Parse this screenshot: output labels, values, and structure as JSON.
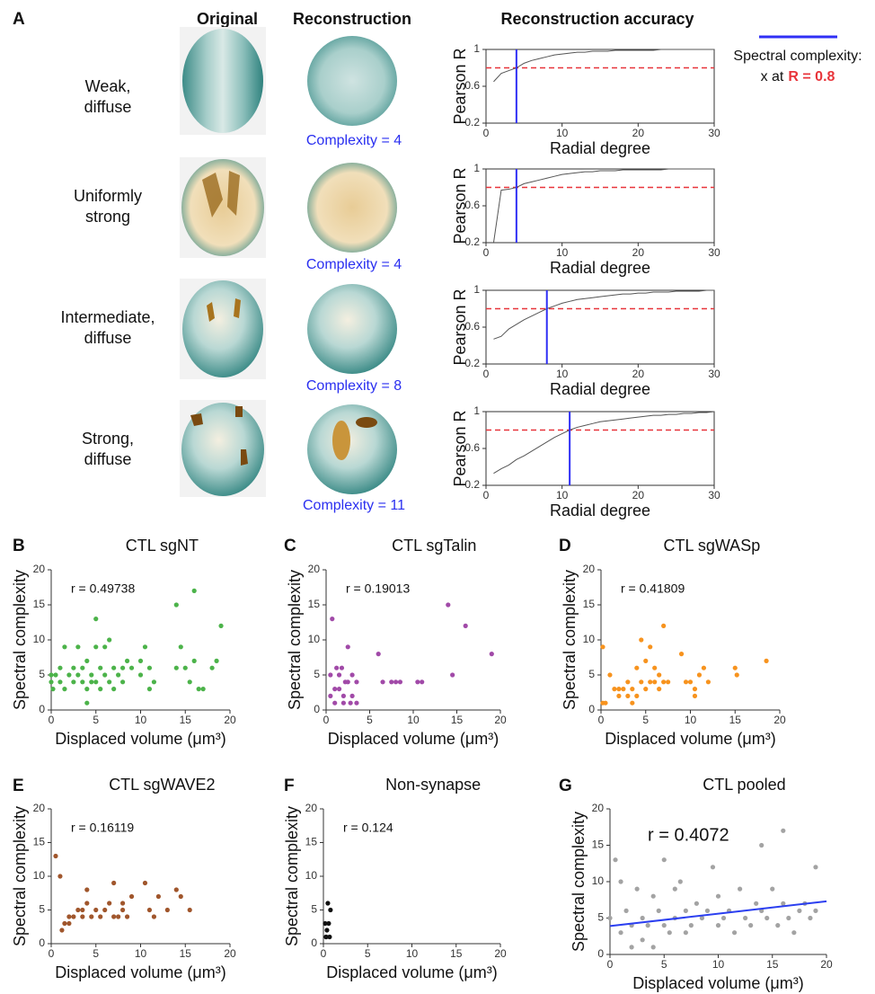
{
  "figure": {
    "panel_labels": [
      "A",
      "B",
      "C",
      "D",
      "E",
      "F",
      "G"
    ],
    "column_headers": [
      "Original",
      "Reconstruction",
      "Reconstruction accuracy"
    ],
    "legend": {
      "line1": "Spectral complexity:",
      "line2": "x at",
      "threshold": "R = 0.8",
      "color": "#2f2ff5",
      "threshold_color": "#e8343a"
    },
    "rows": [
      {
        "label": [
          "Weak,",
          "diffuse"
        ],
        "complexity_label": "Complexity = 4"
      },
      {
        "label": [
          "Uniformly",
          "strong"
        ],
        "complexity_label": "Complexity = 4"
      },
      {
        "label": [
          "Intermediate,",
          "diffuse"
        ],
        "complexity_label": "Complexity = 8"
      },
      {
        "label": [
          "Strong,",
          "diffuse"
        ],
        "complexity_label": "Complexity = 11"
      }
    ]
  },
  "chart_data": [
    {
      "type": "line",
      "xlabel": "Radial degree",
      "ylabel": "Pearson R",
      "xlim": [
        0,
        30
      ],
      "ylim": [
        0.2,
        1
      ],
      "xticks": [
        0,
        10,
        20,
        30
      ],
      "yticks": [
        0.2,
        0.6,
        1
      ],
      "x": [
        1,
        2,
        3,
        4,
        5,
        6,
        7,
        8,
        9,
        10,
        11,
        12,
        13,
        14,
        15,
        16,
        17,
        18,
        19,
        20,
        21,
        22,
        23,
        24,
        25,
        26,
        27,
        28,
        29,
        30
      ],
      "values": [
        0.65,
        0.74,
        0.77,
        0.8,
        0.85,
        0.88,
        0.9,
        0.92,
        0.94,
        0.95,
        0.96,
        0.97,
        0.97,
        0.98,
        0.98,
        0.98,
        0.99,
        0.99,
        0.99,
        0.99,
        0.99,
        0.99,
        1,
        1,
        1,
        1,
        1,
        1,
        1,
        1
      ],
      "color": "#555555",
      "hline": 0.8,
      "hline_color": "#e8343a",
      "vline": 4,
      "vline_color": "#2f2ff5"
    },
    {
      "type": "line",
      "xlabel": "Radial degree",
      "ylabel": "Pearson R",
      "xlim": [
        0,
        30
      ],
      "ylim": [
        0.2,
        1
      ],
      "xticks": [
        0,
        10,
        20,
        30
      ],
      "yticks": [
        0.2,
        0.6,
        1
      ],
      "x": [
        1,
        2,
        3,
        4,
        5,
        6,
        7,
        8,
        9,
        10,
        11,
        12,
        13,
        14,
        15,
        16,
        17,
        18,
        19,
        20,
        21,
        22,
        23,
        24,
        25,
        26,
        27,
        28,
        29,
        30
      ],
      "values": [
        0.2,
        0.77,
        0.78,
        0.8,
        0.84,
        0.86,
        0.88,
        0.9,
        0.92,
        0.94,
        0.95,
        0.96,
        0.97,
        0.97,
        0.98,
        0.98,
        0.98,
        0.99,
        0.99,
        0.99,
        0.99,
        0.99,
        0.99,
        1,
        1,
        1,
        1,
        1,
        1,
        1
      ],
      "color": "#555555",
      "hline": 0.8,
      "hline_color": "#e8343a",
      "vline": 4,
      "vline_color": "#2f2ff5"
    },
    {
      "type": "line",
      "xlabel": "Radial degree",
      "ylabel": "Pearson R",
      "xlim": [
        0,
        30
      ],
      "ylim": [
        0.2,
        1
      ],
      "xticks": [
        0,
        10,
        20,
        30
      ],
      "yticks": [
        0.2,
        0.6,
        1
      ],
      "x": [
        1,
        2,
        3,
        4,
        5,
        6,
        7,
        8,
        9,
        10,
        11,
        12,
        13,
        14,
        15,
        16,
        17,
        18,
        19,
        20,
        21,
        22,
        23,
        24,
        25,
        26,
        27,
        28,
        29,
        30
      ],
      "values": [
        0.47,
        0.5,
        0.58,
        0.63,
        0.68,
        0.72,
        0.76,
        0.8,
        0.83,
        0.86,
        0.88,
        0.9,
        0.91,
        0.92,
        0.93,
        0.94,
        0.95,
        0.96,
        0.96,
        0.97,
        0.97,
        0.98,
        0.98,
        0.98,
        0.99,
        0.99,
        0.99,
        0.99,
        1,
        1
      ],
      "color": "#555555",
      "hline": 0.8,
      "hline_color": "#e8343a",
      "vline": 8,
      "vline_color": "#2f2ff5"
    },
    {
      "type": "line",
      "xlabel": "Radial degree",
      "ylabel": "Pearson R",
      "xlim": [
        0,
        30
      ],
      "ylim": [
        0.2,
        1
      ],
      "xticks": [
        0,
        10,
        20,
        30
      ],
      "yticks": [
        0.2,
        0.6,
        1
      ],
      "x": [
        1,
        2,
        3,
        4,
        5,
        6,
        7,
        8,
        9,
        10,
        11,
        12,
        13,
        14,
        15,
        16,
        17,
        18,
        19,
        20,
        21,
        22,
        23,
        24,
        25,
        26,
        27,
        28,
        29,
        30
      ],
      "values": [
        0.33,
        0.38,
        0.42,
        0.48,
        0.52,
        0.57,
        0.62,
        0.67,
        0.72,
        0.76,
        0.8,
        0.83,
        0.85,
        0.87,
        0.89,
        0.9,
        0.91,
        0.92,
        0.93,
        0.94,
        0.95,
        0.96,
        0.96,
        0.97,
        0.97,
        0.98,
        0.98,
        0.99,
        0.99,
        1
      ],
      "color": "#555555",
      "hline": 0.8,
      "hline_color": "#e8343a",
      "vline": 11,
      "vline_color": "#2f2ff5"
    },
    {
      "type": "scatter",
      "title": "CTL sgNT",
      "annotation": "r = 0.49738",
      "xlabel": "Displaced volume (μm³)",
      "ylabel": "Spectral complexity",
      "xlim": [
        0,
        20
      ],
      "ylim": [
        0,
        20
      ],
      "xticks": [
        0,
        5,
        10,
        15,
        20
      ],
      "yticks": [
        0,
        5,
        10,
        15,
        20
      ],
      "color": "#4cb34a",
      "x": [
        0,
        0,
        0.2,
        0.5,
        1,
        1,
        1.5,
        1.5,
        2,
        2.5,
        2.5,
        3,
        3,
        3.5,
        3.5,
        4,
        4,
        4,
        4.5,
        4.5,
        5,
        5,
        5,
        5.5,
        5.5,
        6,
        6,
        6.5,
        6.5,
        7,
        7,
        7.5,
        8,
        8,
        8.5,
        9,
        10,
        10,
        10.5,
        11,
        11,
        11.5,
        14,
        14,
        14.5,
        15,
        15.5,
        16,
        16,
        16.5,
        17,
        18,
        18.5,
        19
      ],
      "values": [
        5,
        4,
        3,
        5,
        6,
        4,
        9,
        3,
        5,
        6,
        4,
        9,
        5,
        6,
        4,
        7,
        3,
        1,
        5,
        4,
        13,
        9,
        4,
        6,
        3,
        9,
        5,
        10,
        4,
        6,
        3,
        5,
        6,
        4,
        7,
        6,
        7,
        5,
        9,
        6,
        3,
        4,
        15,
        6,
        9,
        6,
        4,
        17,
        7,
        3,
        3,
        6,
        7,
        12
      ]
    },
    {
      "type": "scatter",
      "title": "CTL sgTalin",
      "annotation": "r = 0.19013",
      "xlabel": "Displaced volume (μm³)",
      "ylabel": "Spectral complexity",
      "xlim": [
        0,
        20
      ],
      "ylim": [
        0,
        20
      ],
      "xticks": [
        0,
        5,
        10,
        15,
        20
      ],
      "yticks": [
        0,
        5,
        10,
        15,
        20
      ],
      "color": "#a14aa8",
      "x": [
        0.5,
        0.5,
        0.7,
        1,
        1,
        1.2,
        1.5,
        1.5,
        1.8,
        2,
        2,
        2.2,
        2.5,
        2.5,
        2.8,
        3,
        3,
        3.5,
        3.5,
        6,
        6.5,
        7.5,
        8,
        8.5,
        10.5,
        11,
        14,
        14.5,
        16,
        19
      ],
      "values": [
        5,
        2,
        13,
        3,
        1,
        6,
        5,
        3,
        6,
        2,
        1,
        4,
        9,
        4,
        1,
        5,
        2,
        1,
        4,
        8,
        4,
        4,
        4,
        4,
        4,
        4,
        15,
        5,
        12,
        8
      ]
    },
    {
      "type": "scatter",
      "title": "CTL sgWASp",
      "annotation": "r = 0.41809",
      "xlabel": "Displaced volume (μm³)",
      "ylabel": "Spectral complexity",
      "xlim": [
        0,
        20
      ],
      "ylim": [
        0,
        20
      ],
      "xticks": [
        0,
        5,
        10,
        15,
        20
      ],
      "yticks": [
        0,
        5,
        10,
        15,
        20
      ],
      "color": "#f7931e",
      "x": [
        0.2,
        0.2,
        0.5,
        1,
        1.5,
        2,
        2,
        2.5,
        3,
        3,
        3.5,
        3.5,
        4,
        4,
        4.5,
        4.5,
        5,
        5,
        5.5,
        5.5,
        6,
        6,
        6.5,
        6.5,
        7,
        7,
        7.5,
        9,
        9.5,
        10,
        10.5,
        10.5,
        11,
        11.5,
        12,
        15,
        15.2,
        18.5
      ],
      "values": [
        9,
        1,
        1,
        5,
        3,
        3,
        2,
        3,
        4,
        2,
        3,
        1,
        6,
        2,
        10,
        4,
        7,
        3,
        9,
        4,
        6,
        4,
        5,
        3,
        12,
        4,
        4,
        8,
        4,
        4,
        3,
        2,
        5,
        6,
        4,
        6,
        5,
        7
      ]
    },
    {
      "type": "scatter",
      "title": "CTL sgWAVE2",
      "annotation": "r = 0.16119",
      "xlabel": "Displaced volume (μm³)",
      "ylabel": "Spectral complexity",
      "xlim": [
        0,
        20
      ],
      "ylim": [
        0,
        20
      ],
      "xticks": [
        0,
        5,
        10,
        15,
        20
      ],
      "yticks": [
        0,
        5,
        10,
        15,
        20
      ],
      "color": "#a0562c",
      "x": [
        0.5,
        1,
        1.2,
        1.5,
        2,
        2,
        2.5,
        3,
        3.5,
        3.5,
        4,
        4,
        4.5,
        5,
        5.5,
        6,
        6.5,
        7,
        7,
        7.5,
        8,
        8,
        8.5,
        9,
        10.5,
        11,
        11.5,
        12,
        13,
        14,
        14.5,
        15.5
      ],
      "values": [
        13,
        10,
        2,
        3,
        3,
        4,
        4,
        5,
        4,
        5,
        8,
        6,
        4,
        5,
        4,
        5,
        6,
        9,
        4,
        4,
        6,
        5,
        4,
        7,
        9,
        5,
        4,
        7,
        5,
        8,
        7,
        5
      ]
    },
    {
      "type": "scatter",
      "title": "Non-synapse",
      "annotation": "r = 0.124",
      "xlabel": "Displaced volume (μm³)",
      "ylabel": "Spectral complexity",
      "xlim": [
        0,
        20
      ],
      "ylim": [
        0,
        20
      ],
      "xticks": [
        0,
        5,
        10,
        15,
        20
      ],
      "yticks": [
        0,
        5,
        10,
        15,
        20
      ],
      "color": "#111111",
      "x": [
        0.2,
        0.3,
        0.4,
        0.5,
        0.6,
        0.7,
        0.8,
        0.3
      ],
      "values": [
        3,
        1,
        2,
        6,
        3,
        1,
        5,
        1
      ]
    },
    {
      "type": "scatter",
      "title": "CTL pooled",
      "annotation": "r = 0.4072",
      "xlabel": "Displaced volume (μm³)",
      "ylabel": "Spectral complexity",
      "xlim": [
        0,
        20
      ],
      "ylim": [
        0,
        20
      ],
      "xticks": [
        0,
        5,
        10,
        15,
        20
      ],
      "yticks": [
        0,
        5,
        10,
        15,
        20
      ],
      "color": "#a3a3a3",
      "x": [
        0,
        0.5,
        1,
        1,
        1.5,
        2,
        2,
        2.5,
        3,
        3,
        3.5,
        4,
        4,
        4.5,
        5,
        5,
        5.5,
        6,
        6,
        6.5,
        7,
        7,
        7.5,
        8,
        8.5,
        9,
        9.5,
        10,
        10,
        10.5,
        11,
        11.5,
        12,
        12.5,
        13,
        13.5,
        14,
        14,
        14.5,
        15,
        15.5,
        16,
        16,
        16.5,
        17,
        17.5,
        18,
        18.5,
        19,
        19
      ],
      "values": [
        5,
        13,
        10,
        3,
        6,
        1,
        4,
        9,
        5,
        2,
        4,
        8,
        1,
        6,
        13,
        4,
        3,
        9,
        5,
        10,
        6,
        3,
        4,
        7,
        5,
        6,
        12,
        4,
        8,
        5,
        6,
        3,
        9,
        5,
        4,
        7,
        15,
        6,
        5,
        9,
        4,
        17,
        7,
        5,
        3,
        6,
        7,
        5,
        12,
        6
      ],
      "fit": {
        "x": [
          0,
          20
        ],
        "values": [
          3.9,
          7.3
        ],
        "color": "#2b3ff0"
      }
    }
  ]
}
